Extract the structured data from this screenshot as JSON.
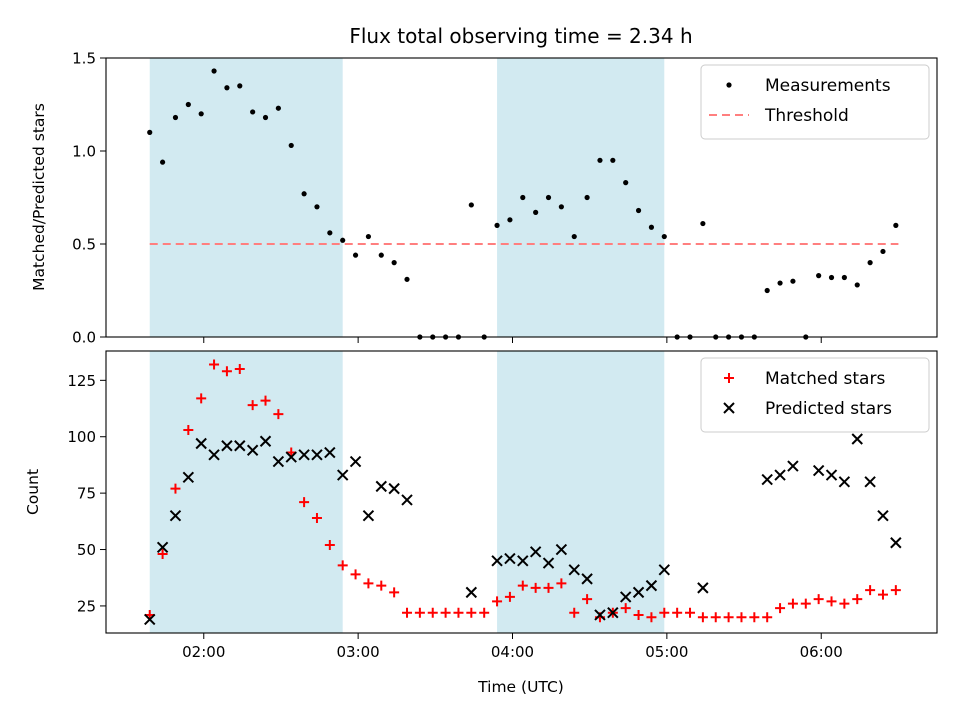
{
  "title": "Flux total observing time = 2.34 h",
  "xlabel": "Time (UTC)",
  "x_tick_labels": [
    "02:00",
    "03:00",
    "04:00",
    "05:00",
    "06:00"
  ],
  "colors": {
    "shade": "#add8e6",
    "measurements": "#000000",
    "threshold": "#ff7f7f",
    "matched": "#ff0000",
    "predicted": "#000000"
  },
  "chart_data": [
    {
      "type": "scatter",
      "ylabel": "Matched/Predicted stars",
      "xlim": [
        "01:22",
        "06:45"
      ],
      "ylim": [
        0,
        1.5
      ],
      "y_tick_labels": [
        "0.0",
        "0.5",
        "1.0",
        "1.5"
      ],
      "legend_position": "top-right",
      "shaded_intervals": [
        [
          "01:39",
          "02:54"
        ],
        [
          "03:54",
          "04:59"
        ]
      ],
      "threshold": {
        "name": "Threshold",
        "value": 0.5,
        "x_range": [
          "01:39",
          "06:30"
        ]
      },
      "series": [
        {
          "name": "Measurements",
          "x": [
            "01:39",
            "01:44",
            "01:49",
            "01:54",
            "01:59",
            "02:04",
            "02:09",
            "02:14",
            "02:19",
            "02:24",
            "02:29",
            "02:34",
            "02:39",
            "02:44",
            "02:49",
            "02:54",
            "02:59",
            "03:04",
            "03:09",
            "03:14",
            "03:19",
            "03:24",
            "03:29",
            "03:34",
            "03:39",
            "03:44",
            "03:49",
            "03:54",
            "03:59",
            "04:04",
            "04:09",
            "04:14",
            "04:19",
            "04:24",
            "04:29",
            "04:34",
            "04:39",
            "04:44",
            "04:49",
            "04:54",
            "04:59",
            "05:04",
            "05:09",
            "05:14",
            "05:19",
            "05:24",
            "05:29",
            "05:34",
            "05:39",
            "05:44",
            "05:49",
            "05:54",
            "05:59",
            "06:04",
            "06:09",
            "06:14",
            "06:19",
            "06:24",
            "06:29"
          ],
          "y": [
            1.1,
            0.94,
            1.18,
            1.25,
            1.2,
            1.43,
            1.34,
            1.35,
            1.21,
            1.18,
            1.23,
            1.03,
            0.77,
            0.7,
            0.56,
            0.52,
            0.44,
            0.54,
            0.44,
            0.4,
            0.31,
            0,
            0,
            0,
            0,
            0.71,
            0,
            0.6,
            0.63,
            0.75,
            0.67,
            0.75,
            0.7,
            0.54,
            0.75,
            0.95,
            0.95,
            0.83,
            0.68,
            0.59,
            0.54,
            0,
            0,
            0.61,
            0,
            0,
            0,
            0,
            0.25,
            0.29,
            0.3,
            0,
            0.33,
            0.32,
            0.32,
            0.28,
            0.4,
            0.46,
            0.6
          ]
        }
      ]
    },
    {
      "type": "scatter",
      "ylabel": "Count",
      "xlabel": "Time (UTC)",
      "xlim": [
        "01:22",
        "06:45"
      ],
      "ylim": [
        13,
        138
      ],
      "y_tick_labels": [
        "25",
        "50",
        "75",
        "100",
        "125"
      ],
      "legend_position": "top-right",
      "shaded_intervals": [
        [
          "01:39",
          "02:54"
        ],
        [
          "03:54",
          "04:59"
        ]
      ],
      "series": [
        {
          "name": "Matched stars",
          "marker": "+",
          "x": [
            "01:39",
            "01:44",
            "01:49",
            "01:54",
            "01:59",
            "02:04",
            "02:09",
            "02:14",
            "02:19",
            "02:24",
            "02:29",
            "02:34",
            "02:39",
            "02:44",
            "02:49",
            "02:54",
            "02:59",
            "03:04",
            "03:09",
            "03:14",
            "03:19",
            "03:24",
            "03:29",
            "03:34",
            "03:39",
            "03:44",
            "03:49",
            "03:54",
            "03:59",
            "04:04",
            "04:09",
            "04:14",
            "04:19",
            "04:24",
            "04:29",
            "04:34",
            "04:39",
            "04:44",
            "04:49",
            "04:54",
            "04:59",
            "05:04",
            "05:09",
            "05:14",
            "05:19",
            "05:24",
            "05:29",
            "05:34",
            "05:39",
            "05:44",
            "05:49",
            "05:54",
            "05:59",
            "06:04",
            "06:09",
            "06:14",
            "06:19",
            "06:24",
            "06:29"
          ],
          "y": [
            21,
            48,
            77,
            103,
            117,
            132,
            129,
            130,
            114,
            116,
            110,
            93,
            71,
            64,
            52,
            43,
            39,
            35,
            34,
            31,
            22,
            22,
            22,
            22,
            22,
            22,
            22,
            27,
            29,
            34,
            33,
            33,
            35,
            22,
            28,
            20,
            22,
            24,
            21,
            20,
            22,
            22,
            22,
            20,
            20,
            20,
            20,
            20,
            20,
            24,
            26,
            26,
            28,
            27,
            26,
            28,
            32,
            30,
            32
          ]
        },
        {
          "name": "Predicted stars",
          "marker": "x",
          "x": [
            "01:39",
            "01:44",
            "01:49",
            "01:54",
            "01:59",
            "02:04",
            "02:09",
            "02:14",
            "02:19",
            "02:24",
            "02:29",
            "02:34",
            "02:39",
            "02:44",
            "02:49",
            "02:54",
            "02:59",
            "03:04",
            "03:09",
            "03:14",
            "03:19",
            "03:44",
            "03:54",
            "03:59",
            "04:04",
            "04:09",
            "04:14",
            "04:19",
            "04:24",
            "04:29",
            "04:34",
            "04:39",
            "04:44",
            "04:49",
            "04:54",
            "04:59",
            "05:14",
            "05:39",
            "05:44",
            "05:49",
            "05:59",
            "06:04",
            "06:09",
            "06:14",
            "06:19",
            "06:24",
            "06:29"
          ],
          "y": [
            19,
            51,
            65,
            82,
            97,
            92,
            96,
            96,
            94,
            98,
            89,
            91,
            92,
            92,
            93,
            83,
            89,
            65,
            78,
            77,
            72,
            31,
            45,
            46,
            45,
            49,
            44,
            50,
            41,
            37,
            21,
            22,
            29,
            31,
            34,
            41,
            33,
            81,
            83,
            87,
            85,
            83,
            80,
            99,
            80,
            65,
            53
          ]
        }
      ]
    }
  ]
}
